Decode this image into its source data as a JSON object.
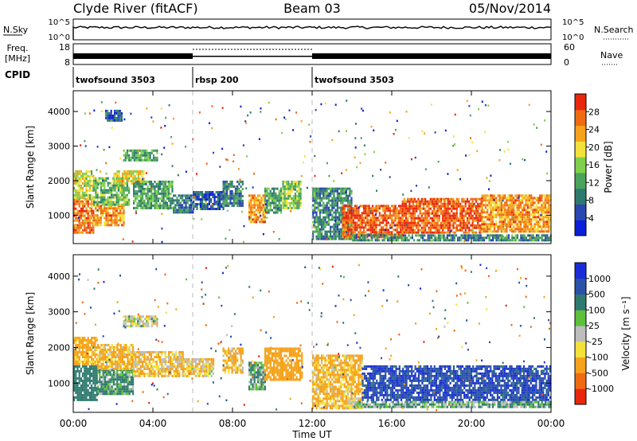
{
  "header": {
    "station": "Clyde River (fitACF)",
    "beam": "Beam 03",
    "date": "05/Nov/2014"
  },
  "panels": {
    "nsky_label": "N.Sky",
    "nsky_ticks": [
      "10^5",
      "10^0"
    ],
    "nsearch_ticks": [
      "10^5",
      "10^0"
    ],
    "nsearch_label": "N.Search",
    "freq_label": "Freq.",
    "freq_unit": "[MHz]",
    "freq_ticks": [
      "18",
      "8"
    ],
    "nave_ticks": [
      "60",
      "0"
    ],
    "nave_label": "Nave",
    "cpid_label": "CPID"
  },
  "cpid_segments": [
    {
      "label": "twofsound 3503",
      "start_hour": 0,
      "end_hour": 6
    },
    {
      "label": "rbsp 200",
      "start_hour": 6,
      "end_hour": 12
    },
    {
      "label": "twofsound 3503",
      "start_hour": 12,
      "end_hour": 24
    }
  ],
  "x_axis": {
    "label": "Time UT",
    "ticks": [
      "00:00",
      "04:00",
      "08:00",
      "12:00",
      "16:00",
      "20:00",
      "00:00"
    ],
    "range_hours": [
      0,
      24
    ]
  },
  "y_axis": {
    "label": "Slant Range [km]",
    "ticks": [
      "1000",
      "2000",
      "3000",
      "4000"
    ],
    "range_km": [
      180,
      4600
    ]
  },
  "power_colorbar": {
    "label": "Power [dB]",
    "ticks": [
      "4",
      "8",
      "12",
      "16",
      "20",
      "24",
      "28"
    ],
    "range": [
      0,
      32
    ],
    "colors": [
      "#0a1fd8",
      "#2a46b0",
      "#2f7a6e",
      "#4aa35a",
      "#7fd04a",
      "#f3e23a",
      "#f6a21a",
      "#f06a12",
      "#e8280c"
    ]
  },
  "velocity_colorbar": {
    "label": "Velocity [m s⁻¹]",
    "ticks": [
      "1000",
      "500",
      "100",
      "25",
      "-25",
      "-100",
      "-500",
      "-1000"
    ],
    "colors": [
      "#1a2ed8",
      "#2a52a8",
      "#2f7a6e",
      "#5cc03a",
      "#bdbdbd",
      "#f3e23a",
      "#f6a21a",
      "#f06a12",
      "#e8280c"
    ]
  },
  "chart_data": [
    {
      "type": "heatmap",
      "title": "Power [dB]",
      "xlabel": "Time UT",
      "ylabel": "Slant Range [km]",
      "xlim_hours": [
        0,
        24
      ],
      "ylim_km": [
        180,
        4600
      ],
      "clim_db": [
        0,
        32
      ],
      "echo_regions": [
        {
          "t0": 0.0,
          "t1": 1.0,
          "r0": 500,
          "r1": 1500,
          "value": 26
        },
        {
          "t0": 0.0,
          "t1": 1.0,
          "r0": 1500,
          "r1": 2300,
          "value": 18
        },
        {
          "t0": 1.0,
          "t1": 2.5,
          "r0": 700,
          "r1": 1300,
          "value": 24
        },
        {
          "t0": 1.0,
          "t1": 2.8,
          "r0": 1300,
          "r1": 2100,
          "value": 14
        },
        {
          "t0": 2.0,
          "t1": 3.5,
          "r0": 1900,
          "r1": 2300,
          "value": 20
        },
        {
          "t0": 2.5,
          "t1": 4.2,
          "r0": 2600,
          "r1": 2900,
          "value": 12
        },
        {
          "t0": 1.6,
          "t1": 2.4,
          "r0": 3750,
          "r1": 4050,
          "value": 6
        },
        {
          "t0": 3.0,
          "t1": 5.0,
          "r0": 1200,
          "r1": 2000,
          "value": 12
        },
        {
          "t0": 5.0,
          "t1": 6.0,
          "r0": 1100,
          "r1": 1600,
          "value": 8
        },
        {
          "t0": 6.0,
          "t1": 7.5,
          "r0": 1200,
          "r1": 1700,
          "value": 6
        },
        {
          "t0": 7.5,
          "t1": 8.5,
          "r0": 1300,
          "r1": 2000,
          "value": 10
        },
        {
          "t0": 8.8,
          "t1": 9.6,
          "r0": 800,
          "r1": 1600,
          "value": 24
        },
        {
          "t0": 9.6,
          "t1": 10.4,
          "r0": 1100,
          "r1": 1800,
          "value": 12
        },
        {
          "t0": 10.5,
          "t1": 11.4,
          "r0": 1200,
          "r1": 2000,
          "value": 16
        },
        {
          "t0": 12.0,
          "t1": 14.0,
          "r0": 300,
          "r1": 1800,
          "value": 10
        },
        {
          "t0": 13.5,
          "t1": 16.5,
          "r0": 400,
          "r1": 1300,
          "value": 28
        },
        {
          "t0": 16.5,
          "t1": 20.5,
          "r0": 500,
          "r1": 1500,
          "value": 28
        },
        {
          "t0": 20.5,
          "t1": 24.0,
          "r0": 500,
          "r1": 1600,
          "value": 24
        },
        {
          "t0": 14.0,
          "t1": 24.0,
          "r0": 300,
          "r1": 450,
          "value": 10
        }
      ]
    },
    {
      "type": "heatmap",
      "title": "Velocity [m s⁻¹]",
      "xlabel": "Time UT",
      "ylabel": "Slant Range [km]",
      "xlim_hours": [
        0,
        24
      ],
      "ylim_km": [
        180,
        4600
      ],
      "clim_ms": [
        -1000,
        1000
      ],
      "echo_regions": [
        {
          "t0": 0.0,
          "t1": 1.2,
          "r0": 500,
          "r1": 1500,
          "value": 150
        },
        {
          "t0": 0.0,
          "t1": 1.2,
          "r0": 1500,
          "r1": 2300,
          "value": -100
        },
        {
          "t0": 1.2,
          "t1": 3.0,
          "r0": 700,
          "r1": 1400,
          "value": 80
        },
        {
          "t0": 1.2,
          "t1": 3.0,
          "r0": 1400,
          "r1": 2100,
          "value": -80
        },
        {
          "t0": 2.5,
          "t1": 4.2,
          "r0": 2600,
          "r1": 2900,
          "value": 0
        },
        {
          "t0": 3.0,
          "t1": 5.5,
          "r0": 1200,
          "r1": 1900,
          "value": -60
        },
        {
          "t0": 5.5,
          "t1": 7.0,
          "r0": 1200,
          "r1": 1700,
          "value": -40
        },
        {
          "t0": 7.5,
          "t1": 8.5,
          "r0": 1300,
          "r1": 2000,
          "value": -80
        },
        {
          "t0": 8.8,
          "t1": 9.6,
          "r0": 800,
          "r1": 1600,
          "value": 60
        },
        {
          "t0": 9.6,
          "t1": 11.5,
          "r0": 1100,
          "r1": 2000,
          "value": -150
        },
        {
          "t0": 12.0,
          "t1": 14.5,
          "r0": 300,
          "r1": 1800,
          "value": -80
        },
        {
          "t0": 14.5,
          "t1": 24.0,
          "r0": 500,
          "r1": 1500,
          "value": 600
        },
        {
          "t0": 14.0,
          "t1": 24.0,
          "r0": 300,
          "r1": 500,
          "value": 50
        }
      ]
    }
  ]
}
